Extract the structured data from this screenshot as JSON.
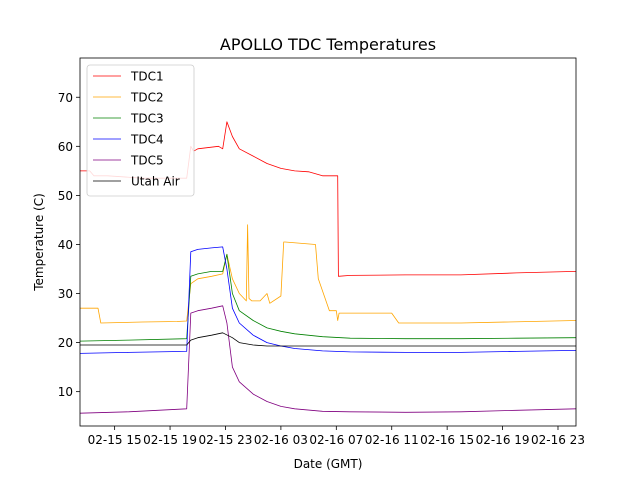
{
  "chart_data": {
    "type": "line",
    "title": "APOLLO TDC Temperatures",
    "xlabel": "Date (GMT)",
    "ylabel": "Temperature (C)",
    "xlim": [
      12.5,
      48.3
    ],
    "ylim": [
      3,
      78
    ],
    "x_unit": "hours since 02-15 00:00",
    "grid": false,
    "legend_position": "top-left",
    "yticks": [
      10,
      20,
      30,
      40,
      50,
      60,
      70
    ],
    "xticks": [
      {
        "value": 15,
        "label": "02-15 15"
      },
      {
        "value": 19,
        "label": "02-15 19"
      },
      {
        "value": 23,
        "label": "02-15 23"
      },
      {
        "value": 27,
        "label": "02-16 03"
      },
      {
        "value": 31,
        "label": "02-16 07"
      },
      {
        "value": 35,
        "label": "02-16 11"
      },
      {
        "value": 39,
        "label": "02-16 15"
      },
      {
        "value": 43,
        "label": "02-16 19"
      },
      {
        "value": 47,
        "label": "02-16 23"
      }
    ],
    "series": [
      {
        "name": "TDC1",
        "color": "#ff0000",
        "x": [
          12.5,
          13.2,
          13.5,
          14.5,
          17.0,
          19.0,
          20.2,
          20.5,
          20.7,
          21.0,
          22.5,
          22.8,
          23.1,
          23.5,
          24.0,
          25.0,
          26.0,
          27.0,
          28.0,
          29.0,
          30.0,
          31.1,
          31.15,
          32.0,
          36.0,
          40.0,
          44.0,
          48.3
        ],
        "values": [
          55,
          55,
          54,
          54,
          53.5,
          53.5,
          53.5,
          60,
          59,
          59.5,
          60,
          59.5,
          65,
          62,
          59.5,
          58,
          56.5,
          55.5,
          55,
          54.8,
          54,
          54,
          33.5,
          33.7,
          33.8,
          33.8,
          34.2,
          34.5
        ]
      },
      {
        "name": "TDC2",
        "color": "#ffa500",
        "x": [
          12.5,
          13.8,
          14.0,
          17.0,
          19.5,
          20.2,
          20.5,
          21.0,
          22.0,
          22.8,
          23.1,
          23.5,
          24.0,
          24.5,
          24.6,
          24.7,
          24.9,
          25.5,
          26.0,
          26.2,
          27.0,
          27.2,
          27.3,
          29.5,
          29.7,
          30.5,
          31.0,
          31.1,
          31.2,
          35.0,
          35.5,
          40.0,
          48.3
        ],
        "values": [
          27,
          27,
          24,
          24.2,
          24.3,
          24.4,
          32,
          33,
          33.5,
          34,
          38,
          33,
          30,
          28.5,
          44,
          29,
          28.5,
          28.5,
          30,
          28,
          29.5,
          40.5,
          40.5,
          40,
          33,
          26.5,
          26.5,
          24.5,
          26,
          26,
          24,
          24,
          24.5
        ]
      },
      {
        "name": "TDC3",
        "color": "#008000",
        "x": [
          12.5,
          16.0,
          20.2,
          20.5,
          21.0,
          22.0,
          22.8,
          23.1,
          23.5,
          24.0,
          25.0,
          26.0,
          27.0,
          28.0,
          30.0,
          32.0,
          36.0,
          40.0,
          44.0,
          48.3
        ],
        "values": [
          20.3,
          20.5,
          20.8,
          33.5,
          34,
          34.5,
          34.5,
          38,
          30,
          26.5,
          24.5,
          23,
          22.3,
          21.8,
          21.2,
          20.9,
          20.8,
          20.8,
          20.9,
          21
        ]
      },
      {
        "name": "TDC4",
        "color": "#0000ff",
        "x": [
          12.5,
          16.0,
          20.2,
          20.5,
          21.0,
          22.0,
          22.8,
          23.1,
          23.5,
          24.0,
          25.0,
          26.0,
          27.0,
          28.0,
          30.0,
          32.0,
          36.0,
          40.0,
          44.0,
          48.3
        ],
        "values": [
          17.8,
          18,
          18.2,
          38.5,
          39,
          39.3,
          39.5,
          35,
          27,
          24,
          21.5,
          20,
          19.3,
          18.8,
          18.3,
          18.1,
          18,
          18,
          18.2,
          18.4
        ]
      },
      {
        "name": "TDC5",
        "color": "#800080",
        "x": [
          12.5,
          16.0,
          20.2,
          20.5,
          21.0,
          22.0,
          22.8,
          23.1,
          23.5,
          24.0,
          25.0,
          26.0,
          27.0,
          28.0,
          30.0,
          32.0,
          36.0,
          40.0,
          44.0,
          48.3
        ],
        "values": [
          5.6,
          5.9,
          6.5,
          26,
          26.5,
          27,
          27.5,
          24,
          15,
          12,
          9.5,
          8,
          7,
          6.5,
          6,
          5.9,
          5.8,
          5.9,
          6.2,
          6.5
        ]
      },
      {
        "name": "Utah Air",
        "color": "#000000",
        "x": [
          12.5,
          16.0,
          20.2,
          20.5,
          21.0,
          22.0,
          22.8,
          23.5,
          24.0,
          25.0,
          26.0,
          30.0,
          36.0,
          42.0,
          48.3
        ],
        "values": [
          19.5,
          19.5,
          19.5,
          20.5,
          21,
          21.5,
          22,
          21,
          20,
          19.5,
          19.3,
          19.3,
          19.3,
          19.3,
          19.3
        ]
      }
    ]
  }
}
